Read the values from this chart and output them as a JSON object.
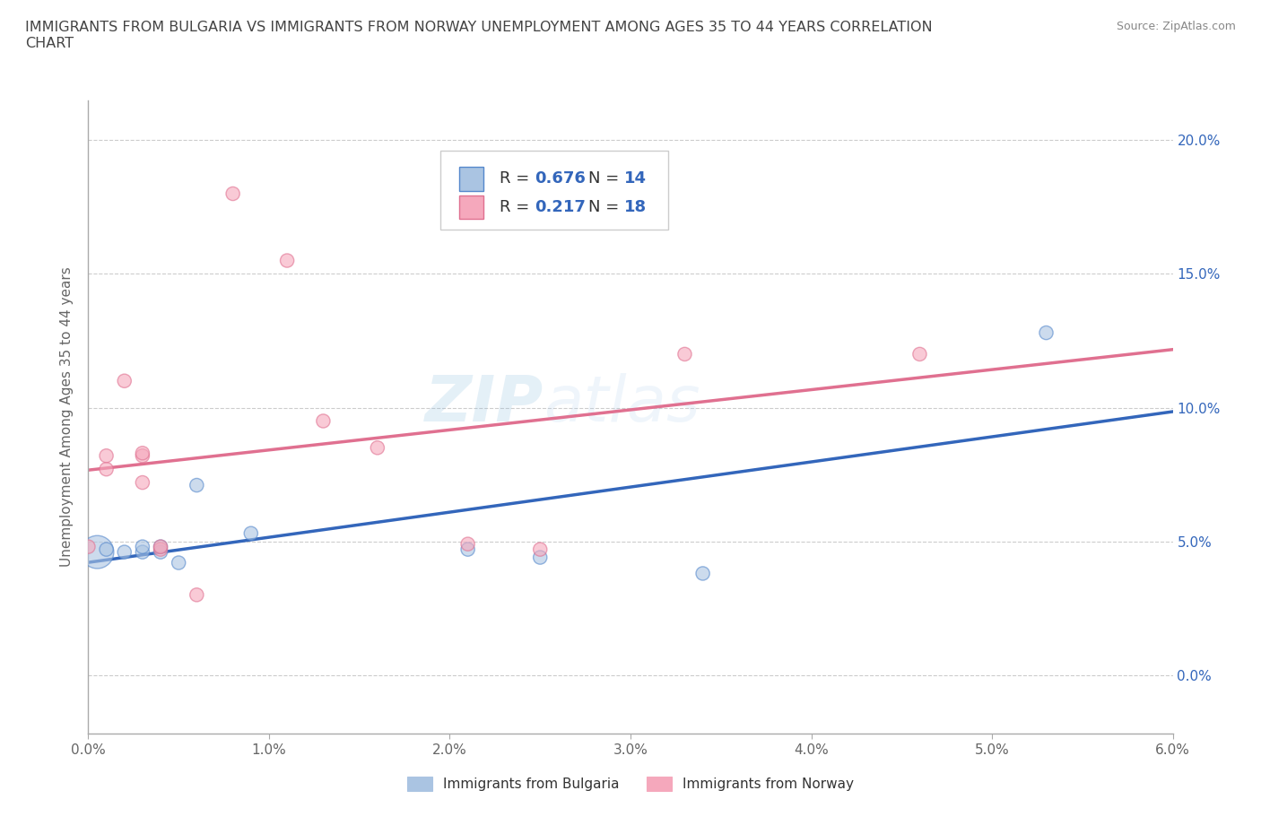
{
  "title": "IMMIGRANTS FROM BULGARIA VS IMMIGRANTS FROM NORWAY UNEMPLOYMENT AMONG AGES 35 TO 44 YEARS CORRELATION\nCHART",
  "source": "Source: ZipAtlas.com",
  "ylabel": "Unemployment Among Ages 35 to 44 years",
  "xlim": [
    0.0,
    0.06
  ],
  "ylim": [
    -0.022,
    0.215
  ],
  "xticks": [
    0.0,
    0.01,
    0.02,
    0.03,
    0.04,
    0.05,
    0.06
  ],
  "xtick_labels": [
    "0.0%",
    "1.0%",
    "2.0%",
    "3.0%",
    "4.0%",
    "5.0%",
    "6.0%"
  ],
  "yticks": [
    0.0,
    0.05,
    0.1,
    0.15,
    0.2
  ],
  "ytick_labels": [
    "0.0%",
    "5.0%",
    "10.0%",
    "15.0%",
    "20.0%"
  ],
  "bulgaria_color": "#aac4e2",
  "bulgaria_edge": "#5588cc",
  "norway_color": "#f5a8bc",
  "norway_edge": "#e07090",
  "bulgaria_line_color": "#3366bb",
  "norway_line_color": "#e07090",
  "legend_R_bulgaria": "0.676",
  "legend_N_bulgaria": "14",
  "legend_R_norway": "0.217",
  "legend_N_norway": "18",
  "watermark_line1": "ZIP",
  "watermark_line2": "atlas",
  "bulgaria_x": [
    0.0005,
    0.001,
    0.002,
    0.003,
    0.003,
    0.004,
    0.004,
    0.005,
    0.006,
    0.009,
    0.021,
    0.025,
    0.034,
    0.053
  ],
  "bulgaria_y": [
    0.046,
    0.047,
    0.046,
    0.046,
    0.048,
    0.046,
    0.048,
    0.042,
    0.071,
    0.053,
    0.047,
    0.044,
    0.038,
    0.128
  ],
  "bulgaria_sizes": [
    700,
    120,
    120,
    120,
    120,
    120,
    120,
    120,
    120,
    120,
    120,
    120,
    120,
    120
  ],
  "norway_x": [
    0.0,
    0.001,
    0.001,
    0.002,
    0.003,
    0.003,
    0.003,
    0.004,
    0.004,
    0.006,
    0.008,
    0.011,
    0.013,
    0.016,
    0.021,
    0.025,
    0.033,
    0.046
  ],
  "norway_y": [
    0.048,
    0.077,
    0.082,
    0.11,
    0.082,
    0.083,
    0.072,
    0.047,
    0.048,
    0.03,
    0.18,
    0.155,
    0.095,
    0.085,
    0.049,
    0.047,
    0.12,
    0.12
  ],
  "norway_sizes": [
    120,
    120,
    120,
    120,
    120,
    120,
    120,
    120,
    120,
    120,
    120,
    120,
    120,
    120,
    120,
    120,
    120,
    120
  ],
  "grid_color": "#cccccc",
  "background_color": "#ffffff",
  "title_color": "#444444",
  "axis_label_color": "#666666",
  "right_tick_color": "#3366bb"
}
